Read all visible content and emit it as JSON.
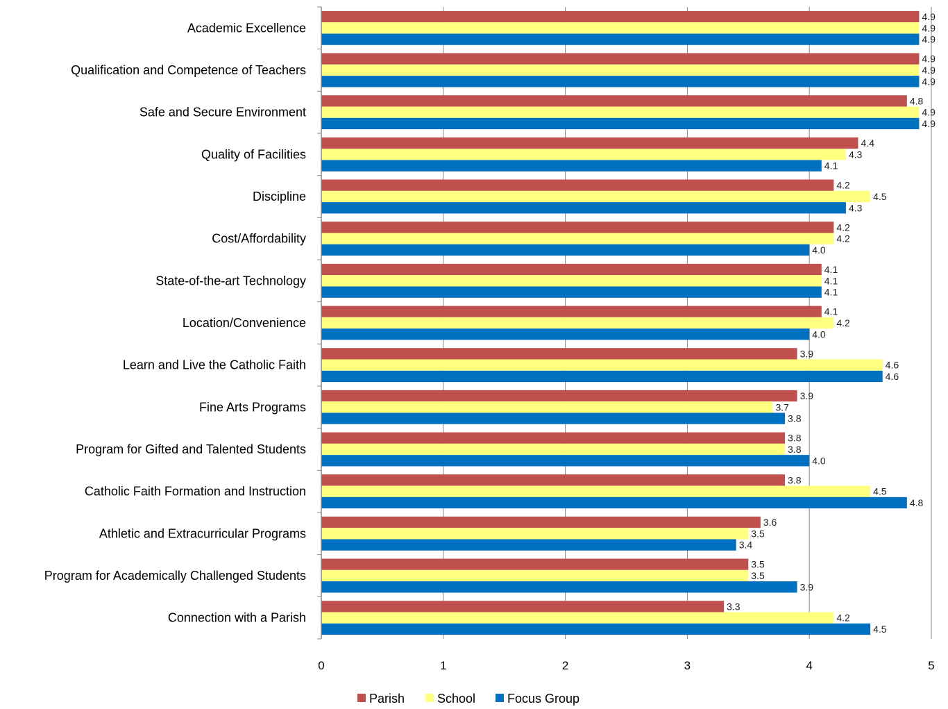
{
  "chart_data": {
    "type": "bar",
    "orientation": "horizontal",
    "categories": [
      "Academic Excellence",
      "Qualification and Competence of Teachers",
      "Safe and Secure Environment",
      "Quality of Facilities",
      "Discipline",
      "Cost/Affordability",
      "State-of-the-art Technology",
      "Location/Convenience",
      "Learn and Live the Catholic Faith",
      "Fine Arts Programs",
      "Program for Gifted and Talented Students",
      "Catholic Faith Formation and Instruction",
      "Athletic and Extracurricular Programs",
      "Program for Academically Challenged Students",
      "Connection with a Parish"
    ],
    "series": [
      {
        "name": "Parish",
        "color": "#C0504D",
        "values": [
          4.9,
          4.9,
          4.8,
          4.4,
          4.2,
          4.2,
          4.1,
          4.1,
          3.9,
          3.9,
          3.8,
          3.8,
          3.6,
          3.5,
          3.3
        ]
      },
      {
        "name": "School",
        "color": "#FFFF80",
        "values": [
          4.9,
          4.9,
          4.9,
          4.3,
          4.5,
          4.2,
          4.1,
          4.2,
          4.6,
          3.7,
          3.8,
          4.5,
          3.5,
          3.5,
          4.2
        ]
      },
      {
        "name": "Focus Group",
        "color": "#0070C0",
        "values": [
          4.9,
          4.9,
          4.9,
          4.1,
          4.3,
          4.0,
          4.1,
          4.0,
          4.6,
          3.8,
          4.0,
          4.8,
          3.4,
          3.9,
          4.5
        ]
      }
    ],
    "xlim": [
      0,
      5
    ],
    "xticks": [
      "0",
      "1",
      "2",
      "3",
      "4",
      "5"
    ],
    "title": "",
    "xlabel": "",
    "ylabel": "",
    "grid": "vertical",
    "legend": "bottom",
    "data_labels": true
  }
}
